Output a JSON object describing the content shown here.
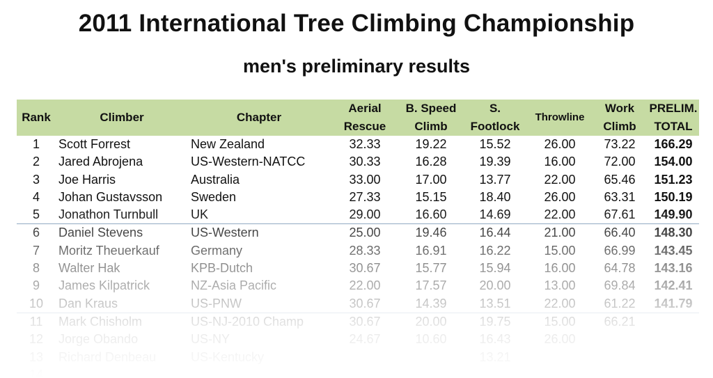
{
  "title": "2011 International Tree Climbing Championship",
  "subtitle": "men's preliminary results",
  "headers": {
    "rank": "Rank",
    "climber": "Climber",
    "chapter": "Chapter",
    "aerial_1": "Aerial",
    "aerial_2": "Rescue",
    "speed_1": "B. Speed",
    "speed_2": "Climb",
    "footlock_1": "S.",
    "footlock_2": "Footlock",
    "throwline": "Throwline",
    "work_1": "Work",
    "work_2": "Climb",
    "total_1": "PRELIM.",
    "total_2": "TOTAL"
  },
  "rows": [
    {
      "rank": "1",
      "name": "Scott Forrest",
      "chapter": "New Zealand",
      "aerial": "32.33",
      "speed": "19.22",
      "footlock": "15.52",
      "throwline": "26.00",
      "work": "73.22",
      "total": "166.29"
    },
    {
      "rank": "2",
      "name": "Jared Abrojena",
      "chapter": "US-Western-NATCC",
      "aerial": "30.33",
      "speed": "16.28",
      "footlock": "19.39",
      "throwline": "16.00",
      "work": "72.00",
      "total": "154.00"
    },
    {
      "rank": "3",
      "name": "Joe Harris",
      "chapter": "Australia",
      "aerial": "33.00",
      "speed": "17.00",
      "footlock": "13.77",
      "throwline": "22.00",
      "work": "65.46",
      "total": "151.23"
    },
    {
      "rank": "4",
      "name": "Johan Gustavsson",
      "chapter": "Sweden",
      "aerial": "27.33",
      "speed": "15.15",
      "footlock": "18.40",
      "throwline": "26.00",
      "work": "63.31",
      "total": "150.19"
    },
    {
      "rank": "5",
      "name": "Jonathon Turnbull",
      "chapter": "UK",
      "aerial": "29.00",
      "speed": "16.60",
      "footlock": "14.69",
      "throwline": "22.00",
      "work": "67.61",
      "total": "149.90"
    },
    {
      "rank": "6",
      "name": "Daniel Stevens",
      "chapter": "US-Western",
      "aerial": "25.00",
      "speed": "19.46",
      "footlock": "16.44",
      "throwline": "21.00",
      "work": "66.40",
      "total": "148.30"
    },
    {
      "rank": "7",
      "name": "Moritz Theuerkauf",
      "chapter": "Germany",
      "aerial": "28.33",
      "speed": "16.91",
      "footlock": "16.22",
      "throwline": "15.00",
      "work": "66.99",
      "total": "143.45"
    },
    {
      "rank": "8",
      "name": "Walter Hak",
      "chapter": "KPB-Dutch",
      "aerial": "30.67",
      "speed": "15.77",
      "footlock": "15.94",
      "throwline": "16.00",
      "work": "64.78",
      "total": "143.16"
    },
    {
      "rank": "9",
      "name": "James Kilpatrick",
      "chapter": "NZ-Asia Pacific",
      "aerial": "22.00",
      "speed": "17.57",
      "footlock": "20.00",
      "throwline": "13.00",
      "work": "69.84",
      "total": "142.41"
    },
    {
      "rank": "10",
      "name": "Dan Kraus",
      "chapter": "US-PNW",
      "aerial": "30.67",
      "speed": "14.39",
      "footlock": "13.51",
      "throwline": "22.00",
      "work": "61.22",
      "total": "141.79"
    },
    {
      "rank": "11",
      "name": "Mark Chisholm",
      "chapter": "US-NJ-2010 Champ",
      "aerial": "30.67",
      "speed": "20.00",
      "footlock": "19.75",
      "throwline": "15.00",
      "work": "66.21",
      "total": ""
    },
    {
      "rank": "12",
      "name": "Jorge Obando",
      "chapter": "US-NY",
      "aerial": "24.67",
      "speed": "10.60",
      "footlock": "16.43",
      "throwline": "26.00",
      "work": "",
      "total": ""
    },
    {
      "rank": "13",
      "name": "Richard Denbeau",
      "chapter": "US-Kentucky",
      "aerial": "",
      "speed": "",
      "footlock": "13.21",
      "throwline": "",
      "work": "",
      "total": ""
    },
    {
      "rank": "14",
      "name": "",
      "chapter": "",
      "aerial": "",
      "speed": "",
      "footlock": "",
      "throwline": "",
      "work": "",
      "total": ""
    }
  ]
}
